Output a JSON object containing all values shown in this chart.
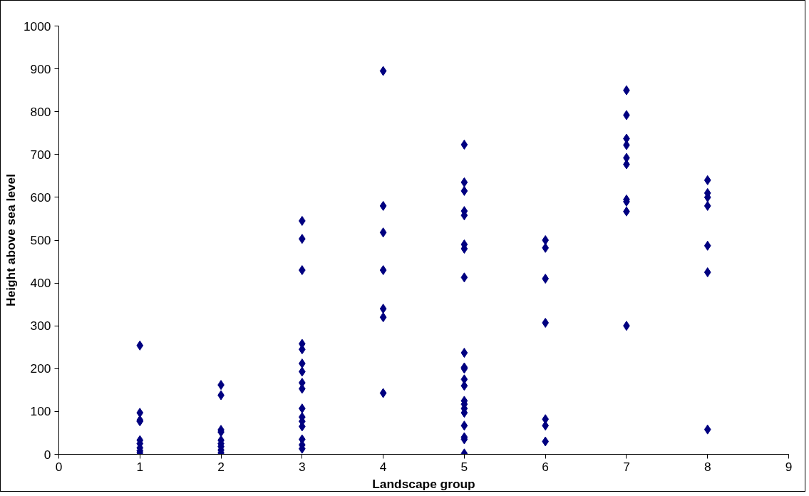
{
  "chart_data": {
    "type": "scatter",
    "xlabel": "Landscape group",
    "ylabel": "Height above sea level",
    "xlim": [
      0,
      9
    ],
    "xticks": [
      0,
      1,
      2,
      3,
      4,
      5,
      6,
      7,
      8,
      9
    ],
    "ylim": [
      0,
      1000
    ],
    "yticks": [
      0,
      100,
      200,
      300,
      400,
      500,
      600,
      700,
      800,
      900,
      1000
    ],
    "grid": false,
    "marker": "diamond",
    "series": [
      {
        "color": "#000080",
        "x": [
          1,
          1,
          1,
          1,
          1,
          1,
          1,
          1,
          1,
          2,
          2,
          2,
          2,
          2,
          2,
          2,
          2,
          2,
          3,
          3,
          3,
          3,
          3,
          3,
          3,
          3,
          3,
          3,
          3,
          3,
          3,
          3,
          3,
          3,
          4,
          4,
          4,
          4,
          4,
          4,
          4,
          5,
          5,
          5,
          5,
          5,
          5,
          5,
          5,
          5,
          5,
          5,
          5,
          5,
          5,
          5,
          5,
          5,
          5,
          5,
          5,
          5,
          6,
          6,
          6,
          6,
          6,
          6,
          6,
          7,
          7,
          7,
          7,
          7,
          7,
          7,
          7,
          7,
          7,
          8,
          8,
          8,
          8,
          8,
          8,
          8
        ],
        "values": [
          254,
          97,
          80,
          77,
          33,
          25,
          15,
          8,
          3,
          162,
          138,
          57,
          52,
          33,
          25,
          18,
          10,
          3,
          545,
          503,
          430,
          258,
          245,
          212,
          193,
          167,
          153,
          107,
          87,
          77,
          65,
          35,
          22,
          13,
          895,
          580,
          518,
          430,
          340,
          320,
          143,
          723,
          635,
          615,
          568,
          558,
          490,
          480,
          413,
          237,
          203,
          200,
          175,
          160,
          125,
          117,
          107,
          97,
          67,
          40,
          35,
          2,
          500,
          482,
          410,
          307,
          82,
          67,
          30,
          850,
          792,
          737,
          722,
          692,
          677,
          595,
          590,
          567,
          300,
          640,
          610,
          600,
          580,
          487,
          425,
          58
        ]
      }
    ]
  }
}
